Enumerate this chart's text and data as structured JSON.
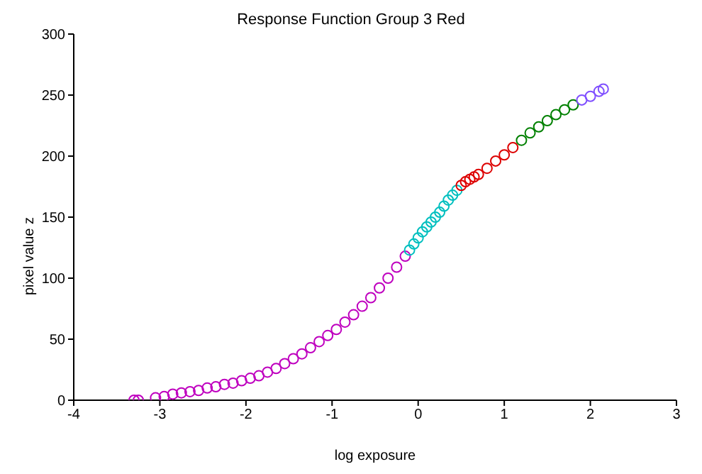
{
  "chart_data": {
    "type": "scatter",
    "title": "Response Function Group 3 Red",
    "xlabel": "log exposure",
    "ylabel": "pixel value z",
    "xlim": [
      -4,
      3
    ],
    "xticks": [
      -4,
      -3,
      -2,
      -1,
      0,
      1,
      2,
      3
    ],
    "ylim": [
      0,
      300
    ],
    "yticks": [
      0,
      50,
      100,
      150,
      200,
      250,
      300
    ],
    "grid": false,
    "legend": false,
    "marker": "circle",
    "series": [
      {
        "color": "#bf00bf",
        "x": [
          -3.3,
          -3.25,
          -3.05,
          -2.95,
          -2.85,
          -2.75,
          -2.65,
          -2.55,
          -2.45,
          -2.35,
          -2.25,
          -2.15,
          -2.05,
          -1.95,
          -1.85,
          -1.75,
          -1.65,
          -1.55,
          -1.45,
          -1.35,
          -1.25,
          -1.15,
          -1.05,
          -0.95,
          -0.85,
          -0.75,
          -0.65,
          -0.55,
          -0.45,
          -0.35,
          -0.25,
          -0.15
        ],
        "values": [
          0,
          0,
          2,
          3,
          5,
          6,
          7,
          8,
          10,
          11,
          13,
          14,
          16,
          18,
          20,
          23,
          26,
          30,
          34,
          38,
          43,
          48,
          53,
          58,
          64,
          70,
          77,
          84,
          92,
          100,
          109,
          118
        ]
      },
      {
        "color": "#00bfbf",
        "x": [
          -0.1,
          -0.05,
          0,
          0.05,
          0.1,
          0.15,
          0.2,
          0.25,
          0.3,
          0.35,
          0.4,
          0.45
        ],
        "values": [
          123,
          128,
          133,
          138,
          142,
          146,
          150,
          154,
          159,
          164,
          168,
          172
        ]
      },
      {
        "color": "#dd0000",
        "x": [
          0.5,
          0.55,
          0.6,
          0.65,
          0.7,
          0.8,
          0.9,
          1.0,
          1.1
        ],
        "values": [
          176,
          179,
          181,
          183,
          185,
          190,
          196,
          201,
          207
        ]
      },
      {
        "color": "#008000",
        "x": [
          1.2,
          1.3,
          1.4,
          1.5,
          1.6,
          1.7,
          1.8
        ],
        "values": [
          213,
          219,
          224,
          229,
          234,
          238,
          242
        ]
      },
      {
        "color": "#8050ff",
        "x": [
          1.9,
          2.0,
          2.1,
          2.15
        ],
        "values": [
          246,
          249,
          253,
          255
        ]
      }
    ]
  }
}
